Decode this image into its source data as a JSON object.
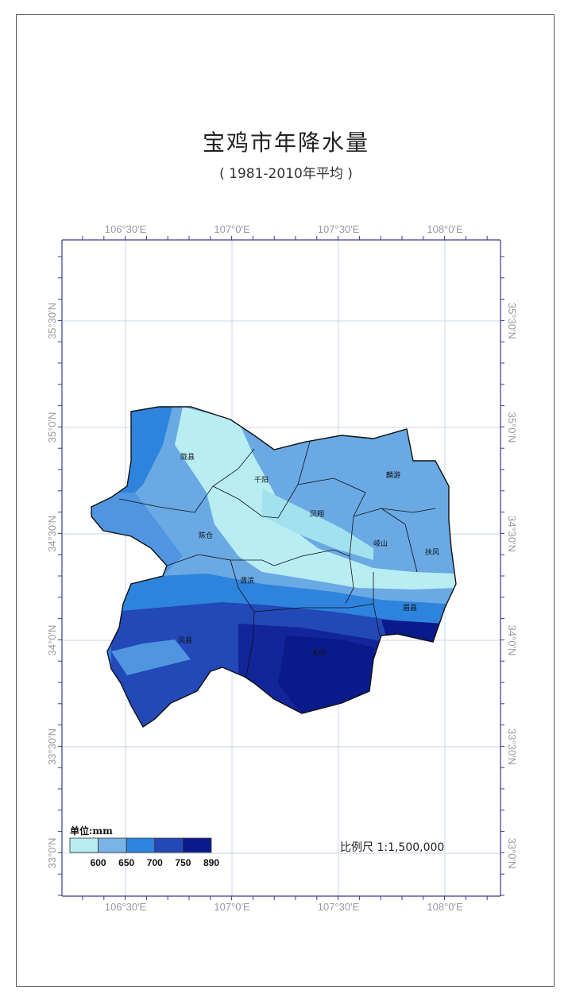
{
  "title": "宝鸡市年降水量",
  "subtitle": "( 1981-2010年平均 )",
  "lon_ticks": [
    "106°30'E",
    "107°0'E",
    "107°30'E",
    "108°0'E"
  ],
  "lat_ticks": [
    "35°30'N",
    "35°0'N",
    "34°30'N",
    "34°0'N",
    "33°30'N",
    "33°0'N"
  ],
  "counties": [
    "陇县",
    "千阳",
    "麟游",
    "凤翔",
    "陈仓",
    "岐山",
    "扶风",
    "眉县",
    "渭滨",
    "凤县",
    "太白"
  ],
  "legend": {
    "title": "单位:mm",
    "values": [
      "600",
      "650",
      "700",
      "750",
      "890"
    ],
    "colors": [
      "#b8eef2",
      "#7ab3e6",
      "#2e83dc",
      "#2348b8",
      "#0a1a8a"
    ]
  },
  "scale": "比例尺 1:1,500,000"
}
